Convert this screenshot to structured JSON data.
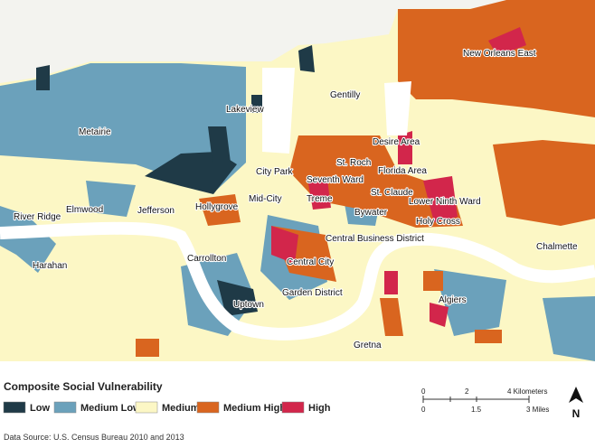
{
  "map": {
    "labels": [
      "New Orleans East",
      "Gentilly",
      "Lakeview",
      "Metairie",
      "Desire Area",
      "St. Roch",
      "City Park",
      "Florida Area",
      "Seventh Ward",
      "St. Claude",
      "Mid-City",
      "Treme",
      "Lower Ninth Ward",
      "Elmwood",
      "Jefferson",
      "Hollygrove",
      "River Ridge",
      "Bywater",
      "Holy Cross",
      "Central Business District",
      "Chalmette",
      "Carrollton",
      "Central City",
      "Harahan",
      "Garden District",
      "Algiers",
      "Uptown",
      "Gretna"
    ]
  },
  "legend": {
    "title": "Composite Social Vulnerability",
    "items": [
      {
        "label": "Low",
        "color": "#1f3a47"
      },
      {
        "label": "Medium Low",
        "color": "#6ba1bb"
      },
      {
        "label": "Medium",
        "color": "#fcf7c5"
      },
      {
        "label": "Medium High",
        "color": "#d9651f"
      },
      {
        "label": "High",
        "color": "#d2264b"
      }
    ]
  },
  "scale_bar": {
    "kilometers": [
      "0",
      "2",
      "4 Kilometers"
    ],
    "miles": [
      "0",
      "1.5",
      "3 Miles"
    ]
  },
  "north_arrow": "N",
  "source": "Data Source: U.S. Census Bureau 2010 and 2013"
}
